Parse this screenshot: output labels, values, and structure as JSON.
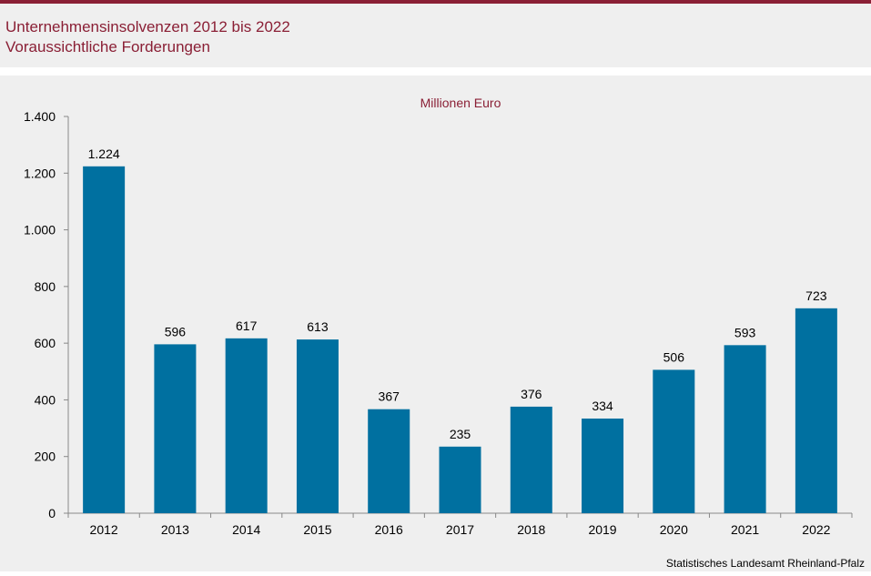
{
  "header": {
    "title_line1": "Unternehmensinsolvenzen 2012 bis 2022",
    "title_line2": "Voraussichtliche Forderungen"
  },
  "source": "Statistisches Landesamt Rheinland-Pfalz",
  "colors": {
    "accent": "#8a1f35",
    "bar": "#0070a0",
    "background": "#efefef"
  },
  "chart_data": {
    "type": "bar",
    "title": "",
    "unit_label": "Millionen Euro",
    "xlabel": "",
    "ylabel": "",
    "categories": [
      "2012",
      "2013",
      "2014",
      "2015",
      "2016",
      "2017",
      "2018",
      "2019",
      "2020",
      "2021",
      "2022"
    ],
    "values": [
      1224,
      596,
      617,
      613,
      367,
      235,
      376,
      334,
      506,
      593,
      723
    ],
    "value_labels": [
      "1.224",
      "596",
      "617",
      "613",
      "367",
      "235",
      "376",
      "334",
      "506",
      "593",
      "723"
    ],
    "ylim": [
      0,
      1400
    ],
    "yticks": [
      0,
      200,
      400,
      600,
      800,
      1000,
      1200,
      1400
    ],
    "ytick_labels": [
      "0",
      "200",
      "400",
      "600",
      "800",
      "1.000",
      "1.200",
      "1.400"
    ],
    "grid": false,
    "legend": "none"
  }
}
